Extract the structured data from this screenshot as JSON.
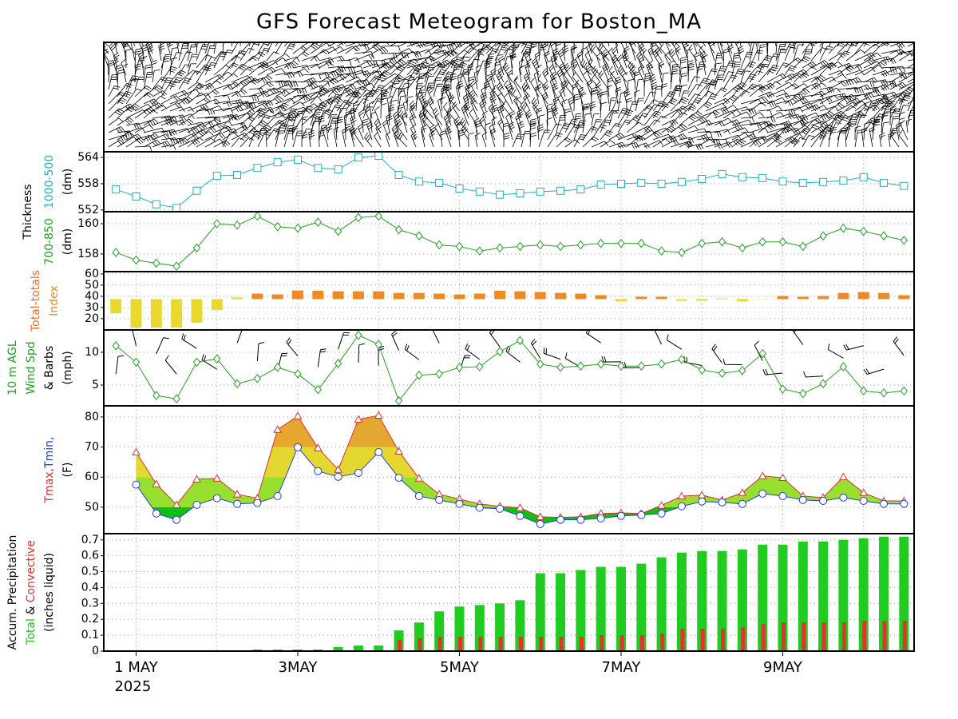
{
  "title": "GFS Forecast Meteogram for Boston_MA",
  "thickness_label": "Thickness",
  "time_axis": {
    "categories": [
      null,
      null,
      null,
      null,
      null,
      null,
      null,
      null,
      null,
      null,
      null,
      null,
      null,
      null,
      null,
      null,
      null,
      null,
      null,
      null,
      null,
      null,
      null,
      null,
      null,
      null,
      null,
      null,
      null,
      null,
      null,
      null,
      null,
      null,
      null,
      null,
      null,
      null,
      null,
      null
    ],
    "xlim": [
      -0.6,
      39.5
    ],
    "xticks": [
      {
        "value": 1,
        "label": "1 MAY"
      },
      {
        "value": 9,
        "label": "3MAY"
      },
      {
        "value": 17,
        "label": "5MAY"
      },
      {
        "value": 25,
        "label": "7MAY"
      },
      {
        "value": 33,
        "label": "9MAY"
      }
    ],
    "xgrid": [
      1,
      5,
      9,
      13,
      17,
      21,
      25,
      29,
      33,
      37
    ],
    "year": "2025"
  },
  "chart_data": [
    {
      "type": "line",
      "ylim": [
        551.6,
        565.3
      ],
      "yticks": [
        552,
        558,
        564
      ],
      "grid": true,
      "ylabel": [
        [
          {
            "text": "1000-500",
            "color": "#20b0c0"
          }
        ],
        [
          {
            "text": "(dm)",
            "color": "#000000"
          }
        ]
      ],
      "series": [
        {
          "color": "#20b0c0",
          "marker": "square",
          "values": [
            556.7,
            555.1,
            553.3,
            552.5,
            556.4,
            559.8,
            560.0,
            561.6,
            562.9,
            563.5,
            561.6,
            561.3,
            564.0,
            564.4,
            560.0,
            558.5,
            558.2,
            556.9,
            556.2,
            555.5,
            555.8,
            556.2,
            556.4,
            556.7,
            557.8,
            558.0,
            558.2,
            558.0,
            558.4,
            559.1,
            560.2,
            559.5,
            559.3,
            558.5,
            558.2,
            558.4,
            558.7,
            559.5,
            558.2,
            557.5
          ]
        }
      ]
    },
    {
      "type": "line",
      "ylim": [
        156.84,
        160.79
      ],
      "yticks": [
        158,
        160
      ],
      "grid": true,
      "ylabel": [
        [
          {
            "text": "700-850",
            "color": "#20a020"
          }
        ],
        [
          {
            "text": "(dm)",
            "color": "#000000"
          }
        ]
      ],
      "series": [
        {
          "color": "#20a020",
          "marker": "diamond",
          "values": [
            158.1,
            157.6,
            157.4,
            157.2,
            158.4,
            160.0,
            159.9,
            160.5,
            159.8,
            159.7,
            160.1,
            159.5,
            160.4,
            160.5,
            159.6,
            159.2,
            158.6,
            158.5,
            158.2,
            158.4,
            158.5,
            158.6,
            158.5,
            158.6,
            158.7,
            158.7,
            158.7,
            158.2,
            158.1,
            158.7,
            158.8,
            158.4,
            158.8,
            158.8,
            158.5,
            159.2,
            159.7,
            159.5,
            159.2,
            158.9
          ]
        }
      ]
    },
    {
      "type": "bar",
      "ylim": [
        9.9,
        62.1
      ],
      "yticks": [
        20,
        30,
        40,
        50,
        60
      ],
      "grid": true,
      "ytick_colors": [
        "#e0d030",
        "#e0d030",
        "#a0a0a0",
        "#f08a20",
        "#f08a20"
      ],
      "bar_base": 37.5,
      "threshold": 39,
      "low_color": "#e8d830",
      "high_color": "#f08a20",
      "ylabel": [
        [
          {
            "text": "Total-totals",
            "color": "#f06a20"
          }
        ],
        [
          {
            "text": "Index",
            "color": "#f08a20"
          }
        ]
      ],
      "series": [
        {
          "values": [
            24.8,
            12,
            12,
            12,
            16.3,
            27.6,
            38.9,
            42.4,
            41.7,
            45.2,
            45.0,
            44.5,
            44.5,
            44.5,
            43.0,
            43.0,
            42.4,
            41.7,
            42.4,
            45.0,
            44.5,
            43.8,
            43.0,
            42.4,
            41.0,
            35.4,
            39.6,
            39.6,
            36.0,
            36.0,
            38.2,
            35.4,
            37.3,
            40.3,
            39.6,
            40.3,
            43.0,
            43.8,
            43.0,
            41.0
          ]
        }
      ]
    },
    {
      "type": "line",
      "ylim": [
        1.83,
        13.41
      ],
      "yticks": [
        5,
        10
      ],
      "grid": true,
      "barbs": true,
      "ylabel": [
        [
          {
            "text": "10 m AGL",
            "color": "#20a020"
          }
        ],
        [
          {
            "text": "Wind Spd",
            "color": "#20a020"
          }
        ],
        [
          {
            "text": "& Barbs",
            "color": "#000000"
          }
        ],
        [
          {
            "text": "(mph)",
            "color": "#000000"
          }
        ]
      ],
      "series": [
        {
          "color": "#20a020",
          "marker": "diamond",
          "values": [
            11.0,
            8.5,
            3.4,
            2.9,
            8.5,
            9.0,
            5.2,
            6.0,
            7.7,
            6.7,
            4.3,
            8.3,
            12.6,
            11.2,
            2.6,
            6.5,
            6.7,
            7.7,
            7.8,
            10.1,
            11.8,
            8.2,
            7.7,
            7.9,
            8.2,
            7.9,
            7.9,
            8.2,
            8.9,
            7.3,
            6.8,
            7.2,
            9.8,
            4.4,
            3.7,
            5.2,
            7.8,
            4.1,
            3.8,
            4.1
          ]
        }
      ]
    },
    {
      "type": "area",
      "ylim": [
        41.2,
        83.7
      ],
      "yticks": [
        50,
        60,
        70,
        80
      ],
      "grid": true,
      "band_edges": [
        50,
        60,
        70
      ],
      "band_colors": [
        "#10c010",
        "#98e030",
        "#e4d830",
        "#e4a830"
      ],
      "ylabel": [
        [
          {
            "text": "Tmax",
            "color": "#e03030"
          },
          {
            "text": ",",
            "color": "#e03030"
          },
          {
            "text": "Tmin,",
            "color": "#2040e0"
          }
        ],
        [
          {
            "text": "(F)",
            "color": "#000000"
          }
        ]
      ],
      "series": [
        {
          "color": "#e03030",
          "marker": "triangle",
          "values": [
            null,
            68.3,
            57.7,
            50.8,
            59.3,
            59.6,
            54.3,
            53.0,
            75.8,
            80.3,
            69.7,
            62.5,
            79.2,
            80.5,
            68.6,
            59.6,
            54.3,
            52.7,
            51.1,
            50.3,
            49.8,
            46.8,
            46.6,
            46.8,
            47.9,
            48.1,
            47.9,
            50.6,
            53.7,
            54.0,
            52.4,
            54.8,
            60.4,
            59.8,
            53.7,
            53.2,
            60.1,
            54.8,
            52.1,
            52.1
          ]
        },
        {
          "color": "#2040e0",
          "marker": "circle",
          "values": [
            null,
            57.5,
            47.9,
            45.8,
            50.8,
            53.0,
            51.1,
            51.4,
            53.7,
            69.9,
            62.0,
            60.1,
            61.4,
            68.3,
            59.8,
            53.7,
            52.4,
            51.1,
            49.8,
            49.5,
            47.1,
            44.4,
            45.8,
            45.8,
            46.3,
            47.1,
            47.4,
            47.9,
            50.3,
            51.9,
            51.6,
            51.1,
            54.5,
            53.7,
            52.4,
            52.1,
            53.2,
            52.1,
            51.1,
            51.1
          ]
        }
      ]
    },
    {
      "type": "bar",
      "ylim": [
        0,
        0.739
      ],
      "yticks": [
        0,
        0.1,
        0.2,
        0.3,
        0.4,
        0.5,
        0.6,
        0.7
      ],
      "grid": true,
      "ylabel": [
        [
          {
            "text": "Accum. Precipitation",
            "color": "#000000"
          }
        ],
        [
          {
            "text": "Total",
            "color": "#20c020"
          },
          {
            "text": " & ",
            "color": "#000000"
          },
          {
            "text": "Convective",
            "color": "#e03030"
          }
        ],
        [
          {
            "text": "(inches liquid)",
            "color": "#000000"
          }
        ]
      ],
      "series": [
        {
          "color": "#20cc20",
          "width": 12,
          "values": [
            0,
            0,
            0,
            0,
            0,
            0,
            0,
            0.01,
            0.01,
            0.01,
            0.01,
            0.025,
            0.035,
            0.035,
            0.13,
            0.18,
            0.25,
            0.28,
            0.29,
            0.3,
            0.32,
            0.49,
            0.49,
            0.51,
            0.53,
            0.53,
            0.55,
            0.59,
            0.62,
            0.63,
            0.63,
            0.64,
            0.67,
            0.67,
            0.69,
            0.69,
            0.7,
            0.71,
            0.72,
            0.72
          ]
        },
        {
          "color": "#e83030",
          "width": 5,
          "values": [
            0,
            0,
            0,
            0,
            0,
            0,
            0,
            0.005,
            0.005,
            0.005,
            0.005,
            0.005,
            0.005,
            0.005,
            0.07,
            0.08,
            0.09,
            0.09,
            0.09,
            0.09,
            0.09,
            0.09,
            0.09,
            0.09,
            0.1,
            0.1,
            0.1,
            0.11,
            0.14,
            0.14,
            0.14,
            0.15,
            0.17,
            0.18,
            0.18,
            0.18,
            0.18,
            0.19,
            0.19,
            0.19
          ]
        }
      ]
    }
  ]
}
